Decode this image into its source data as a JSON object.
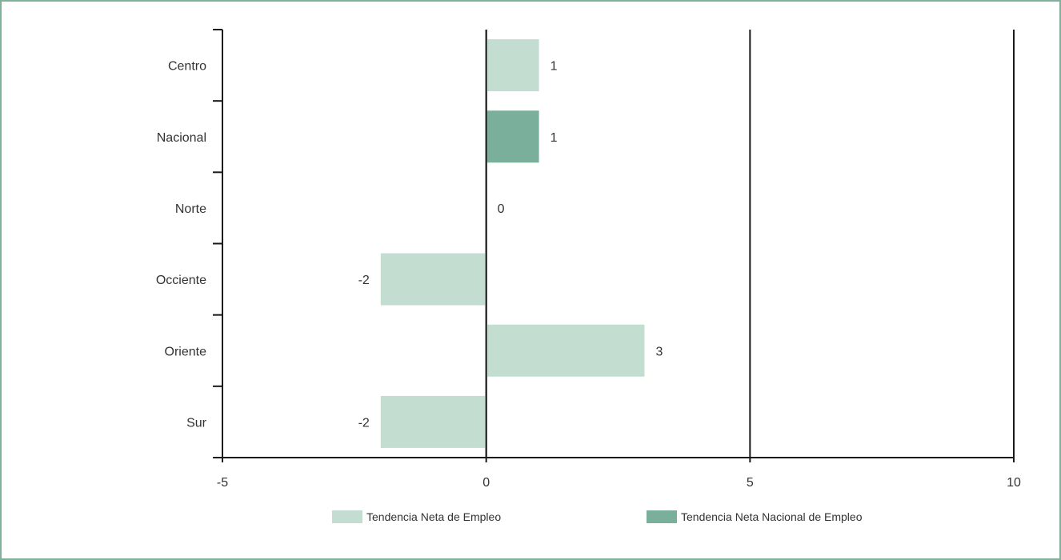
{
  "chart_data": {
    "type": "bar",
    "orientation": "horizontal",
    "categories": [
      "Centro",
      "Nacional",
      "Norte",
      "Occiente",
      "Oriente",
      "Sur"
    ],
    "values": [
      1,
      1,
      0,
      -2,
      3,
      -2
    ],
    "highlight_category": "Nacional",
    "series": [
      {
        "name": "Tendencia Neta de Empleo",
        "color": "#c3ddd1"
      },
      {
        "name": "Tendencia Neta Nacional de Empleo",
        "color": "#7ab09b"
      }
    ],
    "xlim": [
      -5,
      10
    ],
    "x_ticks": [
      "-5",
      "0",
      "5",
      "10"
    ],
    "grid": true,
    "legend_position": "bottom-center",
    "title": "",
    "xlabel": "",
    "ylabel": ""
  }
}
